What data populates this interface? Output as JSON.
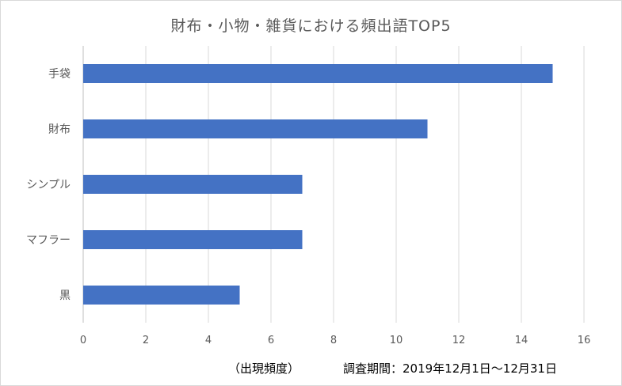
{
  "chart_data": {
    "type": "bar",
    "orientation": "horizontal",
    "title": "財布・小物・雑貨における頻出語TOP5",
    "categories": [
      "手袋",
      "財布",
      "シンプル",
      "マフラー",
      "黒"
    ],
    "values": [
      15,
      11,
      7,
      7,
      5
    ],
    "xlabel": "（出現頻度）",
    "ylabel": "",
    "xlim": [
      0,
      16
    ],
    "xticks": [
      0,
      2,
      4,
      6,
      8,
      10,
      12,
      14,
      16
    ],
    "grid": "vertical",
    "bar_color": "#4472c4",
    "legend": "none"
  },
  "footer": {
    "period": "調査期間：2019年12月1日〜12月31日"
  }
}
